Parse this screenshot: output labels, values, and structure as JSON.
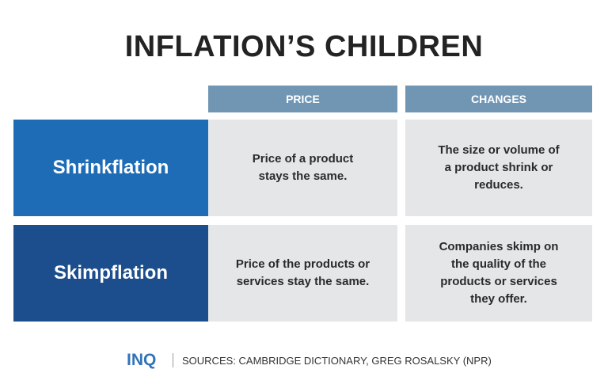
{
  "header": {
    "title": "INFLATION’S CHILDREN"
  },
  "table": {
    "columns": [
      "PRICE",
      "CHANGES"
    ],
    "rows": [
      [
        "Shrinkflation",
        "Price of a product stays the same.",
        "The size or volume of a product shrink or reduces."
      ],
      [
        "Skimpflation",
        "Price of the products or services stay the same.",
        "Companies skimp on the quality of the products or services they offer."
      ]
    ]
  },
  "footer": {
    "logo": "INQ",
    "sources": "SOURCES: CAMBRIDGE DICTIONARY, GREG ROSALSKY (NPR)"
  }
}
